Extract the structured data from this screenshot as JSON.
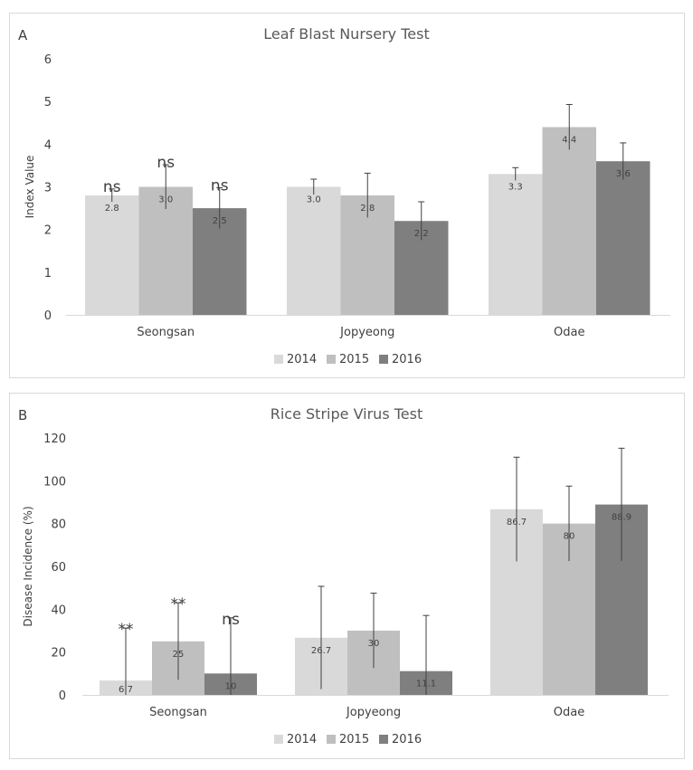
{
  "chart_data": [
    {
      "panel_label": "A",
      "type": "bar",
      "title": "Leaf Blast Nursery Test",
      "xlabel": "",
      "ylabel": "Index Value",
      "ylim": [
        0,
        6
      ],
      "yticks": [
        0,
        1,
        2,
        3,
        4,
        5,
        6
      ],
      "categories": [
        "Seongsan",
        "Jopyeong",
        "Odae"
      ],
      "series": [
        {
          "name": "2014",
          "color": "#d9d9d9",
          "values": [
            2.8,
            3.0,
            3.3
          ],
          "errors": [
            0.15,
            0.18,
            0.15
          ],
          "labels": [
            "2.8",
            "3.0",
            "3.3"
          ]
        },
        {
          "name": "2015",
          "color": "#bfbfbf",
          "values": [
            3.0,
            2.8,
            4.4
          ],
          "errors": [
            0.52,
            0.52,
            0.53
          ],
          "labels": [
            "3.0",
            "2.8",
            "4.4"
          ]
        },
        {
          "name": "2016",
          "color": "#7f7f7f",
          "values": [
            2.5,
            2.2,
            3.6
          ],
          "errors": [
            0.48,
            0.45,
            0.43
          ],
          "labels": [
            "2.5",
            "2.2",
            "3.6"
          ]
        }
      ],
      "annotations": [
        {
          "category": 0,
          "series": 0,
          "text": "ns"
        },
        {
          "category": 0,
          "series": 1,
          "text": "ns"
        },
        {
          "category": 0,
          "series": 2,
          "text": "ns"
        }
      ],
      "legend": "bottom",
      "grid": false
    },
    {
      "panel_label": "B",
      "type": "bar",
      "title": "Rice Stripe Virus Test",
      "xlabel": "",
      "ylabel": "Disease Incidence (%)",
      "ylim": [
        0,
        120
      ],
      "yticks": [
        0,
        20,
        40,
        60,
        80,
        100,
        120
      ],
      "categories": [
        "Seongsan",
        "Jopyeong",
        "Odae"
      ],
      "series": [
        {
          "name": "2014",
          "color": "#d9d9d9",
          "values": [
            6.7,
            26.7,
            86.7
          ],
          "errors": [
            24.5,
            24.0,
            24.3
          ],
          "labels": [
            "6.7",
            "26.7",
            "86.7"
          ]
        },
        {
          "name": "2015",
          "color": "#bfbfbf",
          "values": [
            25,
            30,
            80
          ],
          "errors": [
            18.0,
            17.5,
            17.5
          ],
          "labels": [
            "25",
            "30",
            "80"
          ]
        },
        {
          "name": "2016",
          "color": "#7f7f7f",
          "values": [
            10,
            11.1,
            88.9
          ],
          "errors": [
            26.0,
            26.0,
            26.3
          ],
          "labels": [
            "10",
            "11.1",
            "88.9"
          ]
        }
      ],
      "annotations": [
        {
          "category": 0,
          "series": 0,
          "text": "**"
        },
        {
          "category": 0,
          "series": 1,
          "text": "**"
        },
        {
          "category": 0,
          "series": 2,
          "text": "ns"
        }
      ],
      "legend": "bottom",
      "grid": false
    }
  ]
}
